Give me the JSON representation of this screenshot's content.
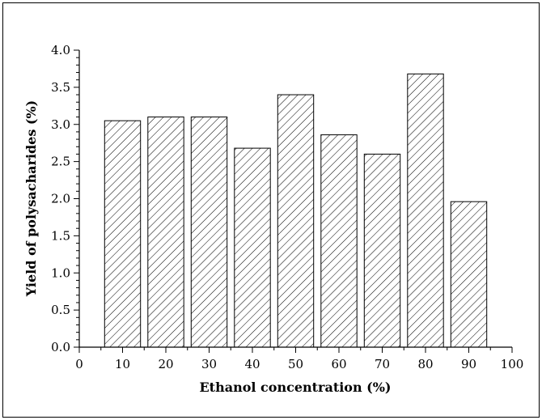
{
  "chart_data": {
    "type": "bar",
    "xlabel": "Ethanol concentration (%)",
    "ylabel": "Yield of polysacharides (%)",
    "x": [
      10,
      20,
      30,
      40,
      50,
      60,
      70,
      80,
      90
    ],
    "values": [
      3.05,
      3.1,
      3.1,
      2.68,
      3.4,
      2.86,
      2.6,
      3.68,
      1.96
    ],
    "xlim": [
      0,
      100
    ],
    "ylim": [
      0.0,
      4.0
    ],
    "x_ticks": [
      "0",
      "10",
      "20",
      "30",
      "40",
      "50",
      "60",
      "70",
      "80",
      "90",
      "100"
    ],
    "y_ticks": [
      "0.0",
      "0.5",
      "1.0",
      "1.5",
      "2.0",
      "2.5",
      "3.0",
      "3.5",
      "4.0"
    ],
    "bar_fill": "diagonal-hatch",
    "bar_color": "#000000",
    "grid": false,
    "legend": "none"
  }
}
